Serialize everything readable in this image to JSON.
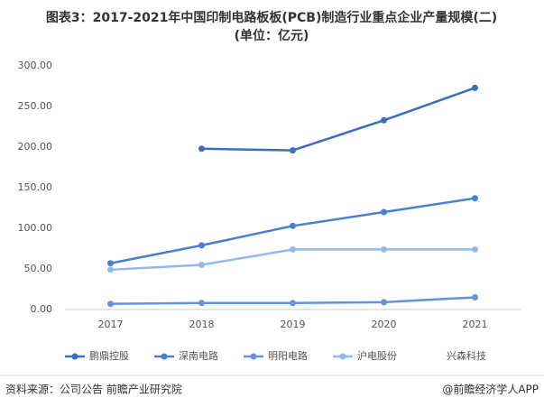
{
  "chart_data": {
    "type": "line",
    "title": "图表3：2017-2021年中国印制电路板板(PCB)制造行业重点企业产量规模(二)",
    "subtitle": "(单位：亿元)",
    "categories": [
      "2017",
      "2018",
      "2019",
      "2020",
      "2021"
    ],
    "series": [
      {
        "name": "鹏鼎控股",
        "color": "#3a6dc4",
        "values": [
          null,
          198,
          196,
          233,
          273
        ]
      },
      {
        "name": "深南电路",
        "color": "#4a7fd6",
        "values": [
          57,
          79,
          103,
          120,
          137
        ]
      },
      {
        "name": "明阳电路",
        "color": "#6193de",
        "values": [
          7,
          8,
          8,
          9,
          15
        ]
      },
      {
        "name": "沪电股份",
        "color": "#94b9ee",
        "values": [
          49,
          55,
          74,
          74,
          74
        ]
      },
      {
        "name": "兴森科技",
        "color": "#ffffff",
        "values": [
          null,
          null,
          null,
          null,
          null
        ]
      }
    ],
    "ylim": [
      0,
      300
    ],
    "yticks": [
      {
        "value": 0,
        "label": "0.00"
      },
      {
        "value": 50,
        "label": "50.00"
      },
      {
        "value": 100,
        "label": "100.00"
      },
      {
        "value": 150,
        "label": "150.00"
      },
      {
        "value": 200,
        "label": "200.00"
      },
      {
        "value": 250,
        "label": "250.00"
      },
      {
        "value": 300,
        "label": "300.00"
      }
    ],
    "grid": false,
    "legend": "bottom",
    "source": "资料来源：公司公告 前瞻产业研究院",
    "credit": "@前瞻经济学人APP"
  }
}
